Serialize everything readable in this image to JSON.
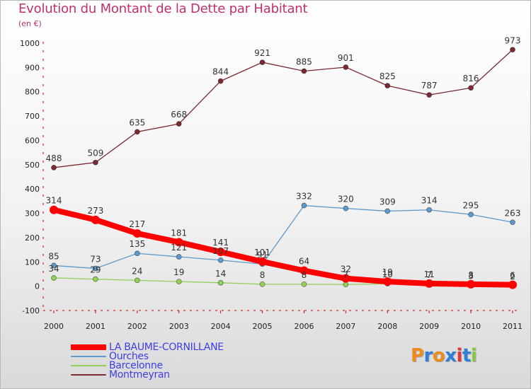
{
  "title": "Evolution du Montant de la Dette par Habitant",
  "unit_label": "(en €)",
  "brand_logo": {
    "text": "Proxiti",
    "colors": [
      "#f08a1c",
      "#2f7fd8",
      "#f08a1c",
      "#2f7fd8",
      "#e33636",
      "#2f7fd8",
      "#8cc640"
    ]
  },
  "chart_data": {
    "type": "line",
    "title": "Evolution du Montant de la Dette par Habitant",
    "ylabel": "(en €)",
    "xlabel": "",
    "x": [
      "2000",
      "2001",
      "2002",
      "2003",
      "2004",
      "2005",
      "2006",
      "2007",
      "2008",
      "2009",
      "2010",
      "2011"
    ],
    "ylim": [
      -100,
      1000
    ],
    "yticks": [
      -100,
      0,
      100,
      200,
      300,
      400,
      500,
      600,
      700,
      800,
      900,
      1000
    ],
    "grid": false,
    "legend": "bottom-left",
    "series": [
      {
        "name": "Montmeyran",
        "color": "#7a2a33",
        "values": [
          488,
          509,
          635,
          668,
          844,
          921,
          885,
          901,
          825,
          787,
          816,
          973
        ],
        "labels": [
          "488",
          "509",
          "635",
          "668",
          "844",
          "921",
          "885",
          "901",
          "825",
          "787",
          "816",
          "973"
        ]
      },
      {
        "name": "Ourches",
        "color": "#5e9acb",
        "values": [
          85,
          73,
          135,
          121,
          107,
          91,
          332,
          320,
          309,
          314,
          295,
          263
        ],
        "labels": [
          "85",
          "73",
          "135",
          "121",
          "107",
          "91",
          "332",
          "320",
          "309",
          "314",
          "295",
          "263"
        ]
      },
      {
        "name": "Barcelonne",
        "color": "#93cf5a",
        "values": [
          34,
          29,
          24,
          19,
          14,
          8,
          8,
          7,
          10,
          7,
          3,
          2
        ],
        "labels": [
          "34",
          "29",
          "24",
          "19",
          "14",
          "8",
          "8",
          "7",
          "10",
          "7",
          "3",
          "2"
        ]
      },
      {
        "name": "LA BAUME-CORNILLANE",
        "color": "#ff0000",
        "values": [
          314,
          273,
          217,
          181,
          141,
          101,
          64,
          32,
          19,
          11,
          8,
          6
        ],
        "labels": [
          "314",
          "273",
          "217",
          "181",
          "141",
          "101",
          "64",
          "32",
          "19",
          "11",
          "8",
          "6"
        ]
      }
    ],
    "legend_order": [
      "LA BAUME-CORNILLANE",
      "Ourches",
      "Barcelonne",
      "Montmeyran"
    ]
  }
}
